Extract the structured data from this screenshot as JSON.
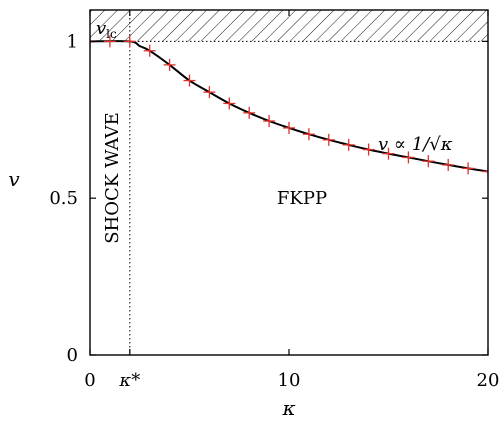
{
  "chart_data": {
    "type": "line",
    "xlabel": "κ",
    "ylabel": "v",
    "xlim": [
      0,
      20
    ],
    "ylim": [
      0,
      1.1
    ],
    "x_ticks": [
      {
        "value": 0,
        "label": "0"
      },
      {
        "value": 2,
        "label": "κ*"
      },
      {
        "value": 10,
        "label": "10"
      },
      {
        "value": 20,
        "label": "20"
      }
    ],
    "y_ticks": [
      {
        "value": 0,
        "label": "0"
      },
      {
        "value": 0.5,
        "label": "0.5"
      },
      {
        "value": 1,
        "label": "1"
      }
    ],
    "kappa_star": 2,
    "v_lc": 1,
    "annotations": {
      "v_lc_label": "v",
      "v_lc_sub": "lc",
      "shock_wave": "SHOCK WAVE",
      "fkpp": "FKPP",
      "scaling": "v ∝ 1/√κ"
    },
    "series": [
      {
        "type": "line",
        "color": "#000000",
        "x": [
          0,
          2,
          2.5,
          3,
          4,
          5,
          6,
          7,
          8,
          9,
          10,
          11,
          12,
          13,
          14,
          15,
          16,
          17,
          18,
          19,
          20
        ],
        "y": [
          1.0,
          1.0,
          0.985,
          0.97,
          0.925,
          0.875,
          0.838,
          0.802,
          0.772,
          0.746,
          0.724,
          0.704,
          0.686,
          0.67,
          0.655,
          0.642,
          0.63,
          0.618,
          0.606,
          0.595,
          0.585
        ]
      },
      {
        "type": "scatter",
        "marker": "plus",
        "color": "#e0302a",
        "x": [
          0,
          1,
          2,
          3,
          4,
          5,
          6,
          7,
          8,
          9,
          10,
          11,
          12,
          13,
          14,
          15,
          16,
          17,
          18,
          19,
          20
        ],
        "y": [
          1.0,
          1.0,
          1.0,
          0.97,
          0.925,
          0.875,
          0.838,
          0.802,
          0.772,
          0.746,
          0.724,
          0.704,
          0.686,
          0.67,
          0.655,
          0.642,
          0.63,
          0.618,
          0.606,
          0.595,
          0.585
        ]
      }
    ]
  }
}
